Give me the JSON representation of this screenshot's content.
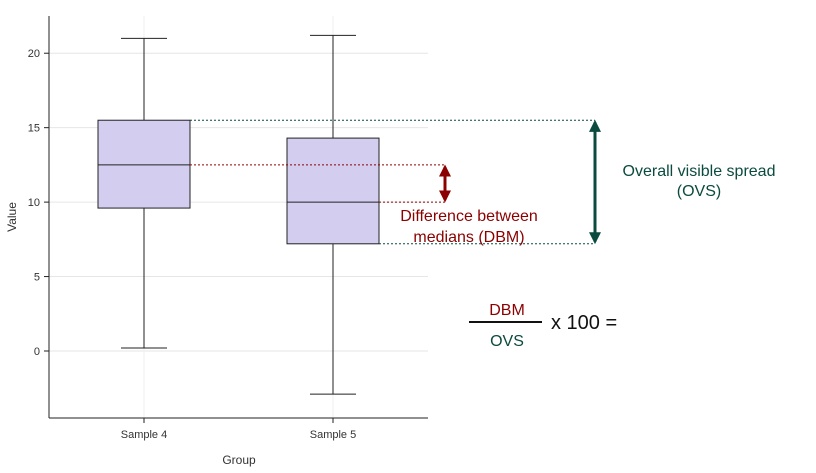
{
  "chart_data": {
    "type": "box",
    "xlabel": "Group",
    "ylabel": "Value",
    "ylim": [
      -4.5,
      22.5
    ],
    "yticks": [
      0,
      5,
      10,
      15,
      20
    ],
    "grid": true,
    "categories": [
      "Sample 4",
      "Sample 5"
    ],
    "boxes": [
      {
        "category": "Sample 4",
        "min": 0.2,
        "q1": 9.6,
        "median": 12.5,
        "q3": 15.5,
        "max": 21.0
      },
      {
        "category": "Sample 5",
        "min": -2.9,
        "q1": 7.2,
        "median": 10.0,
        "q3": 14.3,
        "max": 21.2
      }
    ],
    "box_fill": "#d3cef0",
    "box_stroke": "#222222"
  },
  "annotations": {
    "ovs_label_line1": "Overall visible spread",
    "ovs_label_line2": "(OVS)",
    "dbm_label_line1": "Difference between",
    "dbm_label_line2": "medians (DBM)",
    "formula_numerator": "DBM",
    "formula_denominator": "OVS",
    "formula_rhs": "x 100 =",
    "ovs_color": "#0b4a3e",
    "dbm_color": "#8b0000"
  }
}
